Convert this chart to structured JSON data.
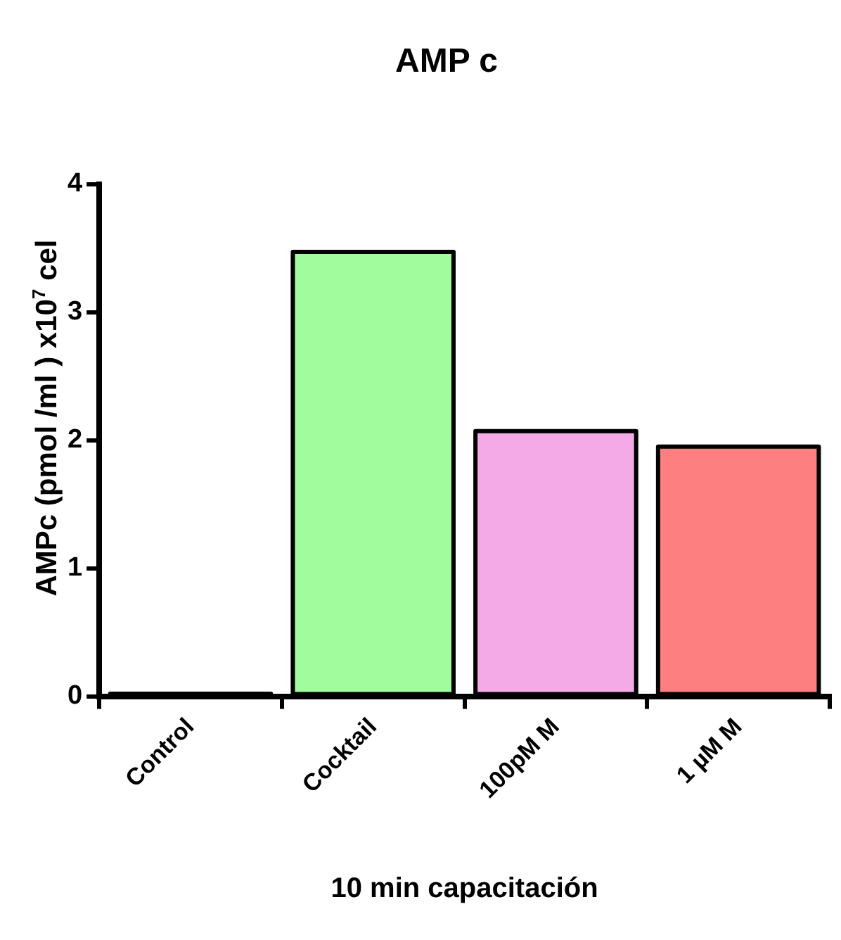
{
  "chart_data": {
    "type": "bar",
    "title": "AMP c",
    "xlabel": "10 min capacitación",
    "ylabel": "AMPc (pmol /ml ) x10$^{7}$ cel",
    "categories": [
      "Control",
      "Cocktail",
      "100pM M",
      "1 µM M"
    ],
    "values": [
      0.02,
      3.47,
      2.07,
      1.95
    ],
    "colors": [
      "#000000",
      "#a0fc9c",
      "#f5aae8",
      "#fe7f7f"
    ],
    "ylim": [
      0,
      4
    ],
    "yticks": [
      0,
      1,
      2,
      3,
      4
    ],
    "grid": false,
    "legend": false
  }
}
